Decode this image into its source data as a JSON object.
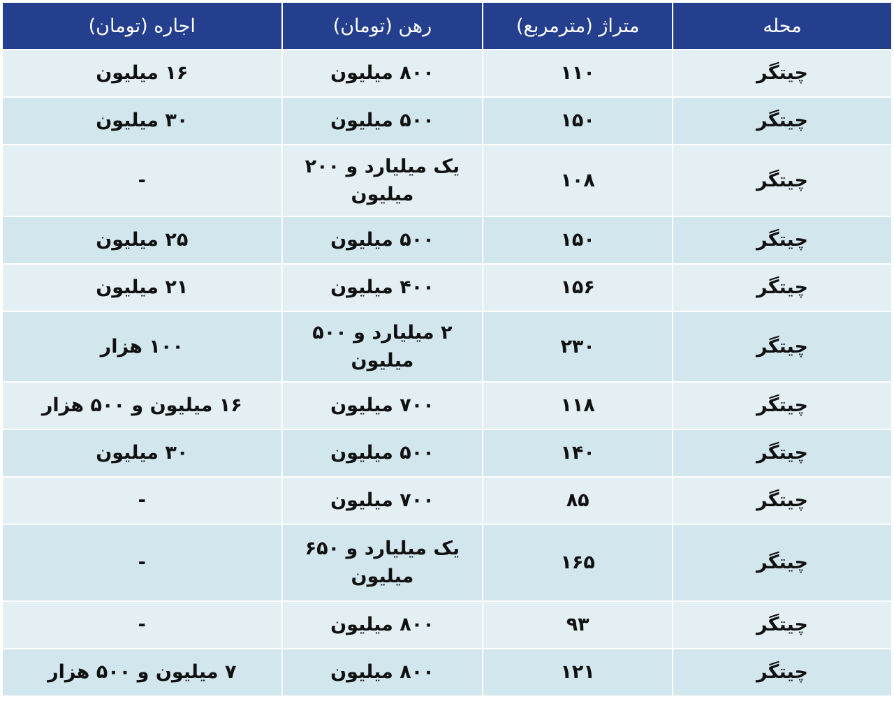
{
  "table": {
    "headers": [
      "محله",
      "متراژ (مترمربع)",
      "رهن (تومان)",
      "اجاره (تومان)"
    ],
    "rows": [
      [
        "چیتگر",
        "۱۱۰",
        "۸۰۰ میلیون",
        "۱۶ میلیون"
      ],
      [
        "چیتگر",
        "۱۵۰",
        "۵۰۰ میلیون",
        "۳۰ میلیون"
      ],
      [
        "چیتگر",
        "۱۰۸",
        "یک میلیارد و ۲۰۰ میلیون",
        "-"
      ],
      [
        "چیتگر",
        "۱۵۰",
        "۵۰۰ میلیون",
        "۲۵ میلیون"
      ],
      [
        "چیتگر",
        "۱۵۶",
        "۴۰۰ میلیون",
        "۲۱ میلیون"
      ],
      [
        "چیتگر",
        "۲۳۰",
        "۲ میلیارد و ۵۰۰ میلیون",
        "۱۰۰ هزار"
      ],
      [
        "چیتگر",
        "۱۱۸",
        "۷۰۰ میلیون",
        "۱۶ میلیون و ۵۰۰ هزار"
      ],
      [
        "چیتگر",
        "۱۴۰",
        "۵۰۰ میلیون",
        "۳۰ میلیون"
      ],
      [
        "چیتگر",
        "۸۵",
        "۷۰۰ میلیون",
        "-"
      ],
      [
        "چیتگر",
        "۱۶۵",
        "یک میلیارد و ۶۵۰ میلیون",
        "-"
      ],
      [
        "چیتگر",
        "۹۳",
        "۸۰۰ میلیون",
        "-"
      ],
      [
        "چیتگر",
        "۱۲۱",
        "۸۰۰ میلیون",
        "۷ میلیون و ۵۰۰ هزار"
      ]
    ]
  },
  "colors": {
    "header": "#253f8f",
    "row_light": "#e4eff4",
    "row_dark": "#d2e6ee"
  }
}
